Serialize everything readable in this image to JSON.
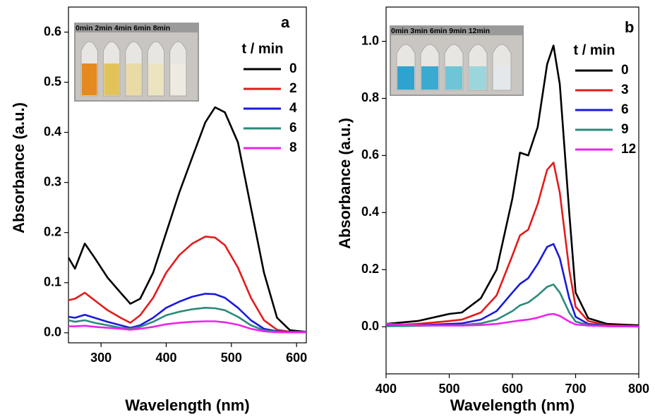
{
  "chart_data": [
    {
      "type": "line",
      "label": "a",
      "inset_caption": "0min 2min 4min 6min 8min",
      "xlabel": "Wavelength (nm)",
      "ylabel": "Absorbance (a.u.)",
      "legend_title": "t / min",
      "x": [
        250,
        260,
        275,
        290,
        310,
        330,
        345,
        360,
        380,
        400,
        420,
        440,
        460,
        475,
        490,
        510,
        530,
        550,
        570,
        590,
        615
      ],
      "xlim": [
        250,
        615
      ],
      "xticks": [
        300,
        400,
        500,
        600
      ],
      "ylim": [
        -0.02,
        0.65
      ],
      "yticks": [
        {
          "value": 0,
          "label": "0.0"
        },
        0.1,
        0.2,
        0.3,
        0.4,
        0.5,
        0.6
      ],
      "series": [
        {
          "name": "0",
          "color": "#000000",
          "values": [
            0.15,
            0.128,
            0.178,
            0.15,
            0.11,
            0.08,
            0.058,
            0.068,
            0.12,
            0.2,
            0.28,
            0.35,
            0.42,
            0.45,
            0.44,
            0.38,
            0.25,
            0.12,
            0.03,
            0.005,
            0.002
          ]
        },
        {
          "name": "2",
          "color": "#e41a1c",
          "values": [
            0.065,
            0.068,
            0.08,
            0.065,
            0.045,
            0.03,
            0.02,
            0.035,
            0.07,
            0.12,
            0.155,
            0.178,
            0.192,
            0.19,
            0.175,
            0.13,
            0.07,
            0.025,
            0.006,
            0.002,
            0.002
          ]
        },
        {
          "name": "4",
          "color": "#1a1adc",
          "values": [
            0.032,
            0.03,
            0.036,
            0.03,
            0.022,
            0.015,
            0.01,
            0.015,
            0.03,
            0.05,
            0.062,
            0.072,
            0.078,
            0.077,
            0.07,
            0.05,
            0.025,
            0.008,
            0.003,
            0.002,
            0.002
          ]
        },
        {
          "name": "6",
          "color": "#2a8a7a",
          "values": [
            0.025,
            0.022,
            0.025,
            0.02,
            0.015,
            0.01,
            0.008,
            0.012,
            0.022,
            0.035,
            0.042,
            0.047,
            0.05,
            0.049,
            0.045,
            0.032,
            0.015,
            0.005,
            0.002,
            0.001,
            0.001
          ]
        },
        {
          "name": "8",
          "color": "#ee22ee",
          "values": [
            0.013,
            0.013,
            0.014,
            0.012,
            0.01,
            0.008,
            0.006,
            0.008,
            0.012,
            0.017,
            0.02,
            0.022,
            0.023,
            0.023,
            0.021,
            0.016,
            0.008,
            0.003,
            0.001,
            0.001,
            0.001
          ]
        }
      ]
    },
    {
      "type": "line",
      "label": "b",
      "inset_caption": "0min 3min 6min 9min 12min",
      "xlabel": "Wavelength (nm)",
      "ylabel": "Absorbance (a.u.)",
      "legend_title": "t / min",
      "x": [
        400,
        450,
        500,
        520,
        550,
        575,
        600,
        612,
        625,
        640,
        655,
        665,
        675,
        690,
        700,
        720,
        750,
        800
      ],
      "xlim": [
        400,
        800
      ],
      "xticks": [
        400,
        500,
        600,
        700,
        800
      ],
      "ylim": [
        -0.165,
        1.12
      ],
      "yticks": [
        {
          "value": 0,
          "label": "0.0"
        },
        0.2,
        0.4,
        0.6,
        0.8,
        {
          "value": 1,
          "label": "1.0"
        }
      ],
      "series": [
        {
          "name": "0",
          "color": "#000000",
          "values": [
            0.01,
            0.02,
            0.045,
            0.05,
            0.1,
            0.2,
            0.45,
            0.61,
            0.6,
            0.7,
            0.92,
            0.985,
            0.85,
            0.4,
            0.12,
            0.03,
            0.01,
            0.005
          ]
        },
        {
          "name": "3",
          "color": "#e41a1c",
          "values": [
            0.005,
            0.01,
            0.02,
            0.025,
            0.05,
            0.11,
            0.25,
            0.32,
            0.34,
            0.43,
            0.55,
            0.575,
            0.47,
            0.2,
            0.07,
            0.02,
            0.005,
            0.002
          ]
        },
        {
          "name": "6",
          "color": "#1a1adc",
          "values": [
            0.003,
            0.005,
            0.01,
            0.012,
            0.025,
            0.055,
            0.12,
            0.15,
            0.17,
            0.22,
            0.28,
            0.29,
            0.24,
            0.1,
            0.035,
            0.01,
            0.003,
            0.001
          ]
        },
        {
          "name": "9",
          "color": "#2a8a7a",
          "values": [
            0.002,
            0.003,
            0.005,
            0.006,
            0.012,
            0.025,
            0.055,
            0.075,
            0.085,
            0.11,
            0.14,
            0.148,
            0.12,
            0.05,
            0.018,
            0.006,
            0.002,
            0.001
          ]
        },
        {
          "name": "12",
          "color": "#ee22ee",
          "values": [
            0.01,
            0.005,
            0.004,
            0.004,
            0.006,
            0.01,
            0.018,
            0.022,
            0.025,
            0.032,
            0.042,
            0.045,
            0.038,
            0.018,
            0.008,
            0.004,
            0.002,
            0.001
          ]
        }
      ]
    }
  ]
}
